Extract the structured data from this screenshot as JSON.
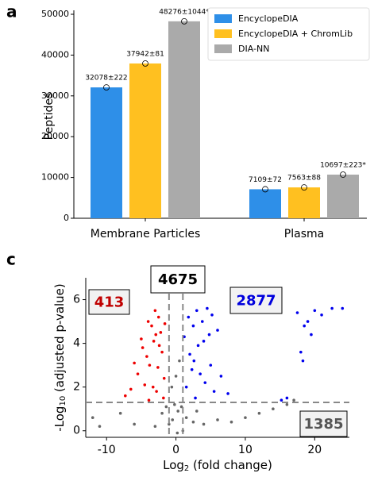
{
  "chart_data": [
    {
      "type": "bar",
      "panel": "a",
      "ylabel": "Peptides",
      "categories": [
        "Membrane Particles",
        "Plasma"
      ],
      "series": [
        {
          "name": "EncyclopeDIA",
          "color": "#2e8fe8",
          "values": [
            32078,
            7109
          ],
          "value_labels": [
            "32078±222",
            "7109±72"
          ]
        },
        {
          "name": "EncyclopeDIA + ChromLib",
          "color": "#ffc020",
          "values": [
            37942,
            7563
          ],
          "value_labels": [
            "37942±81",
            "7563±88"
          ]
        },
        {
          "name": "DIA-NN",
          "color": "#aaaaaa",
          "values": [
            48276,
            10697
          ],
          "value_labels": [
            "48276±1044*",
            "10697±223*"
          ]
        }
      ],
      "ylim": [
        0,
        50000
      ],
      "yticks": [
        0,
        10000,
        20000,
        30000,
        40000,
        50000
      ],
      "legend": "upper right"
    },
    {
      "type": "scatter",
      "panel": "c",
      "xlabel": [
        "Log",
        "2",
        " (fold change)"
      ],
      "ylabel": [
        "-Log",
        "10",
        " (adjusted p-value)"
      ],
      "xlim": [
        -13,
        25
      ],
      "xticks": [
        -10,
        0,
        10,
        20
      ],
      "ylim": [
        -0.3,
        7
      ],
      "yticks": [
        0,
        2,
        4,
        6
      ],
      "thresholds": {
        "x": [
          -1,
          1
        ],
        "y": 1.3
      },
      "annotations": [
        {
          "text": "413",
          "color": "#c00000"
        },
        {
          "text": "4675",
          "color": "#000000"
        },
        {
          "text": "2877",
          "color": "#0000dd"
        },
        {
          "text": "1385",
          "color": "#555555"
        }
      ],
      "series": [
        {
          "color": "#ee0000",
          "x": [
            -4.5,
            -3.8,
            -3.2,
            -2.5,
            -2.0,
            -1.7,
            -2.8,
            -3.5,
            -4.2,
            -5.5,
            -6.5,
            -5.0,
            -3.0,
            -2.2,
            -1.8,
            -4.0,
            -2.6,
            -3.3,
            -7.3,
            -6.0,
            -2.4,
            -1.6,
            -3.9,
            -4.8,
            -2.9
          ],
          "y": [
            2.1,
            3.0,
            4.1,
            5.2,
            3.6,
            2.4,
            1.8,
            4.8,
            3.4,
            2.6,
            1.9,
            4.2,
            5.5,
            4.5,
            1.5,
            5.0,
            2.9,
            2.0,
            1.6,
            3.1,
            3.9,
            4.9,
            1.4,
            3.8,
            4.4
          ]
        },
        {
          "color": "#0000ee",
          "x": [
            1.5,
            2.0,
            2.5,
            3.0,
            3.5,
            4.0,
            4.5,
            5.0,
            5.5,
            6.0,
            1.8,
            2.8,
            3.2,
            4.2,
            6.5,
            7.5,
            1.2,
            2.3,
            3.8,
            4.8,
            5.2,
            2.6,
            17.5,
            18.5,
            19.0,
            20.0,
            21.0,
            22.5,
            24.0,
            18.0,
            18.3,
            16.0,
            15.2,
            19.5
          ],
          "y": [
            2.0,
            3.5,
            4.8,
            5.5,
            2.6,
            4.1,
            5.6,
            3.0,
            1.8,
            4.6,
            5.2,
            1.5,
            3.9,
            2.2,
            2.5,
            1.7,
            4.3,
            2.8,
            5.0,
            4.4,
            5.3,
            3.2,
            5.4,
            4.8,
            5.0,
            5.5,
            5.3,
            5.6,
            5.6,
            3.6,
            3.2,
            1.5,
            1.4,
            4.4
          ]
        },
        {
          "color": "#666666",
          "x": [
            -0.5,
            0.3,
            -1.0,
            0.8,
            -0.2,
            1.5,
            2.5,
            -2.0,
            -3.0,
            0.0,
            0.5,
            -0.6,
            4.0,
            6.0,
            8.0,
            10.0,
            12.0,
            14.0,
            16.0,
            17.0,
            -8.0,
            -12.0,
            -11.0,
            -6.0,
            3.0,
            -1.4,
            0.2,
            1.0
          ],
          "y": [
            0.5,
            0.9,
            0.3,
            1.1,
            1.2,
            0.6,
            0.4,
            0.8,
            0.2,
            2.5,
            3.2,
            2.0,
            0.3,
            0.5,
            0.4,
            0.6,
            0.8,
            1.0,
            1.2,
            1.4,
            0.8,
            0.6,
            0.2,
            0.3,
            0.9,
            1.1,
            -0.1,
            0.0
          ]
        }
      ]
    }
  ]
}
